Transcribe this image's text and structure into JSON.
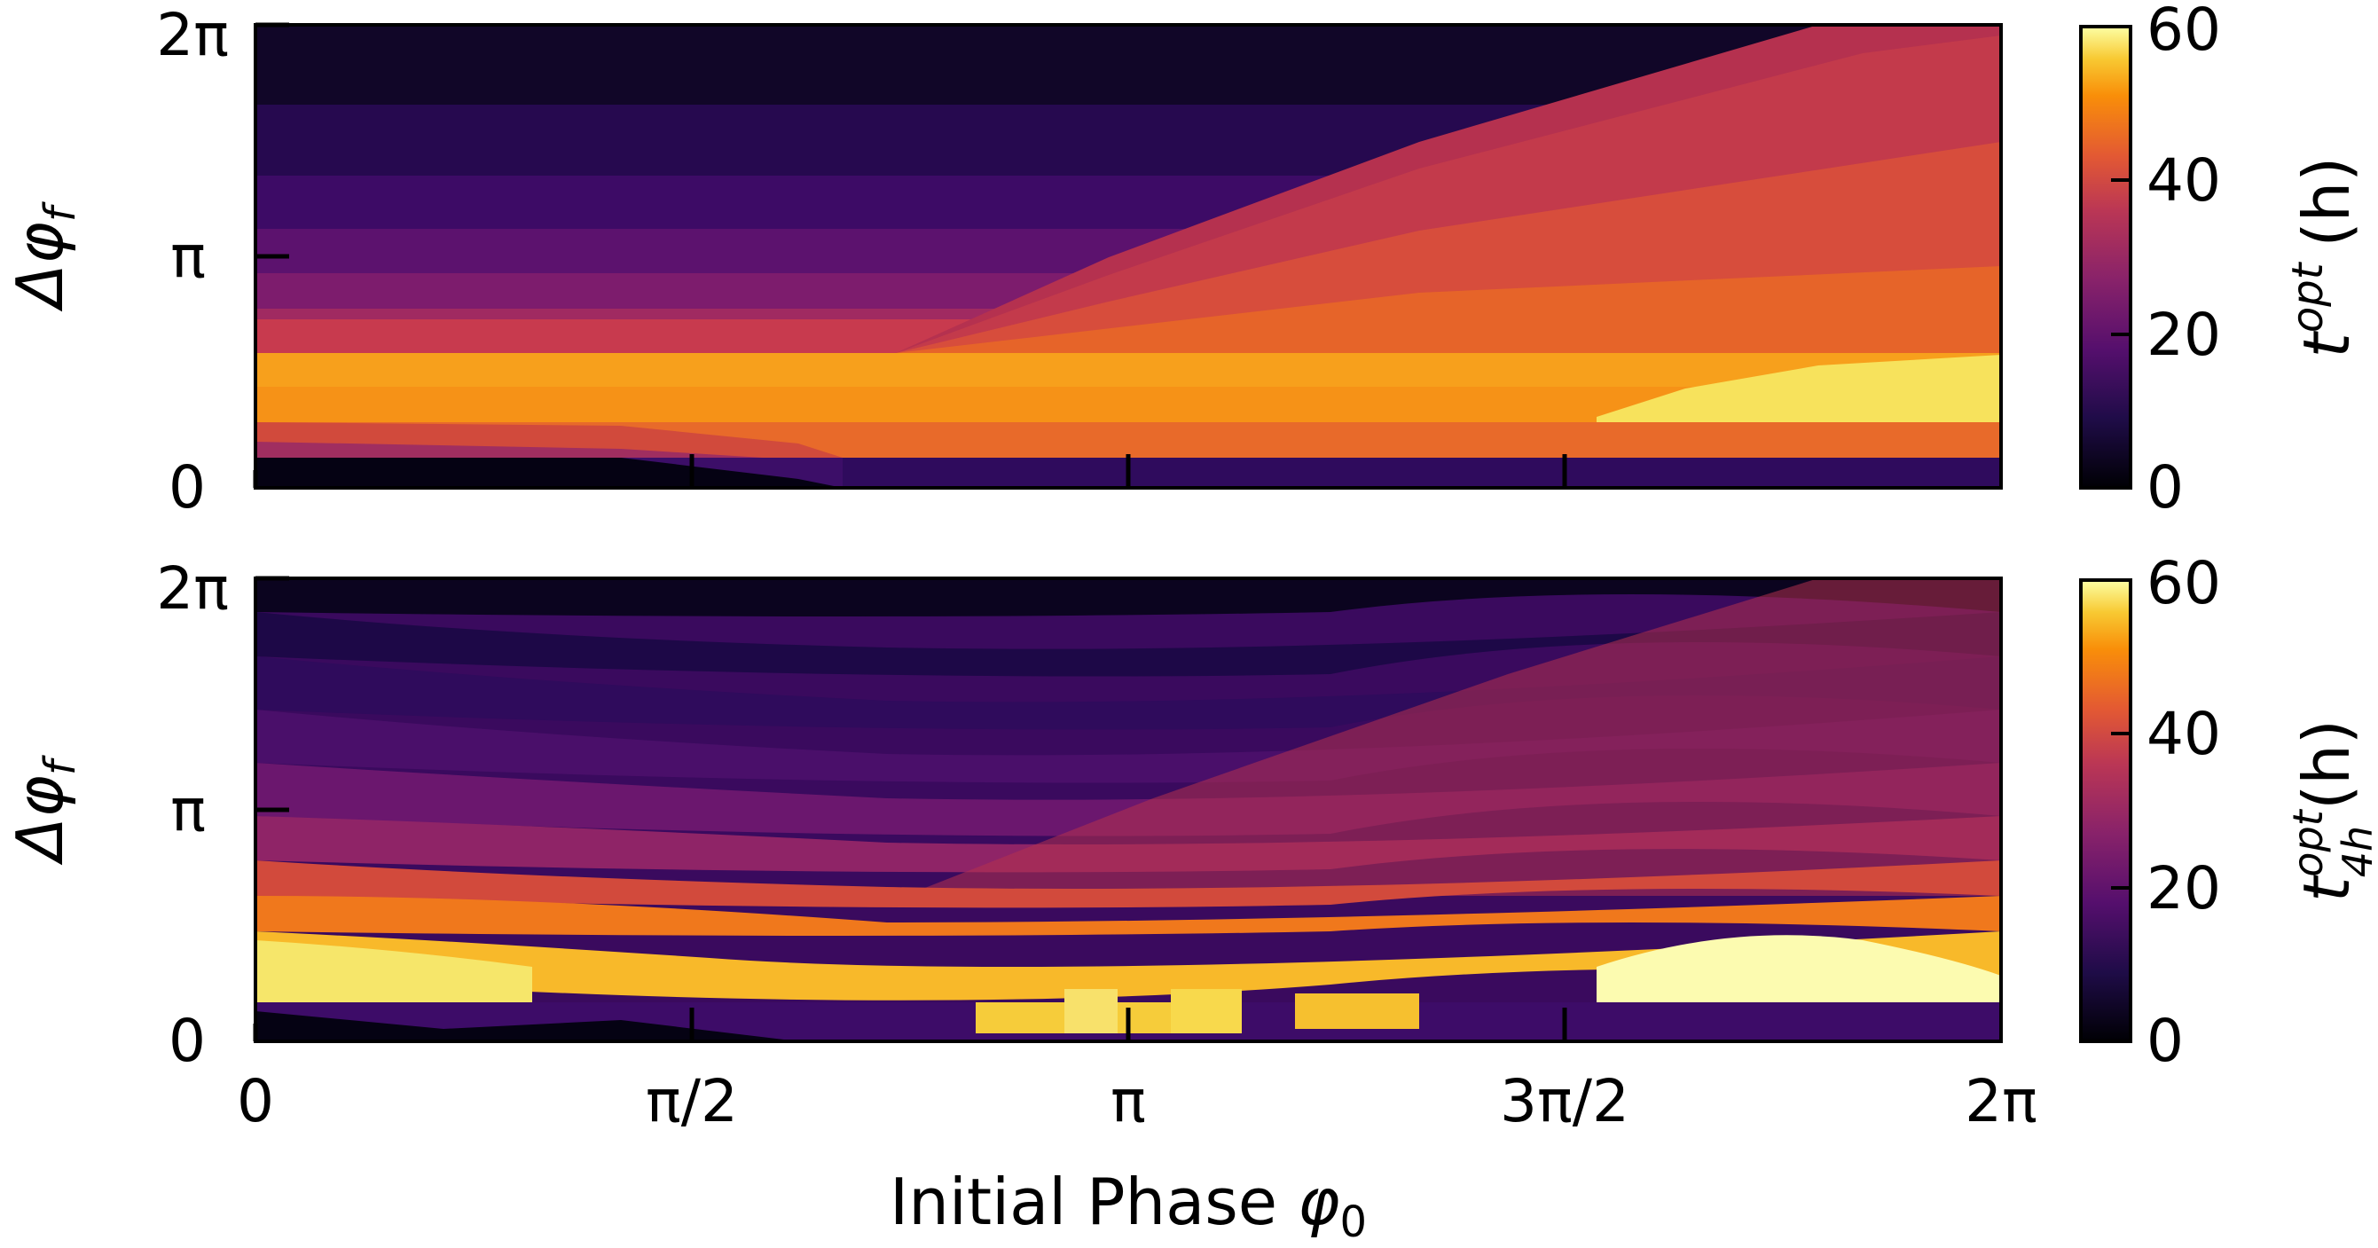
{
  "chart_data": [
    {
      "type": "heatmap",
      "panel": "top",
      "ylabel": "Δφf",
      "colorbar_label": "t^opt (h)",
      "x_ticks": [
        "0",
        "π/2",
        "π",
        "3π/2",
        "2π"
      ],
      "y_ticks": [
        "0",
        "π",
        "2π"
      ],
      "colorbar_ticks": [
        "0",
        "20",
        "40",
        "60"
      ],
      "xlim": [
        0,
        6.283
      ],
      "ylim": [
        0,
        6.283
      ],
      "zlim": [
        0,
        60
      ],
      "colormap": "inferno",
      "regions": [
        {
          "name": "low band near Δφf=0",
          "y_range": [
            0,
            0.45
          ],
          "t_opt": [
            0,
            10
          ]
        },
        {
          "name": "orange band",
          "y_range": [
            0.95,
            1.8
          ],
          "t_opt": [
            42,
            52
          ]
        },
        {
          "name": "bright band for φ0 > 3π/2",
          "y_range": [
            0.95,
            1.8
          ],
          "t_opt": [
            55,
            60
          ]
        },
        {
          "name": "upper region (smooth gradient)",
          "y_range": [
            1.8,
            6.283
          ],
          "t_opt": [
            0,
            40
          ]
        }
      ],
      "boundary_phase_line": {
        "x": [
          0,
          2.7,
          6.05
        ],
        "y": [
          1.8,
          1.8,
          6.283
        ]
      }
    },
    {
      "type": "heatmap",
      "panel": "bottom",
      "ylabel": "Δφf",
      "colorbar_label": "t_4h^opt (h)",
      "xlabel": "Initial Phase φ0",
      "x_ticks": [
        "0",
        "π/2",
        "π",
        "3π/2",
        "2π"
      ],
      "y_ticks": [
        "0",
        "π",
        "2π"
      ],
      "colorbar_ticks": [
        "0",
        "20",
        "40",
        "60"
      ],
      "xlim": [
        0,
        6.283
      ],
      "ylim": [
        0,
        6.283
      ],
      "zlim": [
        0,
        60
      ],
      "colormap": "inferno",
      "regions": [
        {
          "name": "step bands (4 h discretization)",
          "y_range": [
            0,
            6.283
          ],
          "t_opt": [
            0,
            60
          ]
        }
      ]
    }
  ],
  "labels": {
    "top_ylabel_main": "Δφ",
    "top_ylabel_sub": "f",
    "bottom_ylabel_main": "Δφ",
    "bottom_ylabel_sub": "f",
    "top_cbar_main": "t",
    "top_cbar_sup": "opt",
    "top_cbar_unit": "(h)",
    "bottom_cbar_main": "t",
    "bottom_cbar_sup": "opt",
    "bottom_cbar_sub": "4h",
    "bottom_cbar_unit": "(h)",
    "xlabel_text": "Initial Phase ",
    "xlabel_sym": "φ",
    "xlabel_sub": "0",
    "y_tick_0": "0",
    "y_tick_pi": "π",
    "y_tick_2pi": "2π",
    "x_tick_0": "0",
    "x_tick_pi2": "π/2",
    "x_tick_pi": "π",
    "x_tick_3pi2": "3π/2",
    "x_tick_2pi": "2π",
    "cbar_tick_0": "0",
    "cbar_tick_20": "20",
    "cbar_tick_40": "40",
    "cbar_tick_60": "60"
  }
}
